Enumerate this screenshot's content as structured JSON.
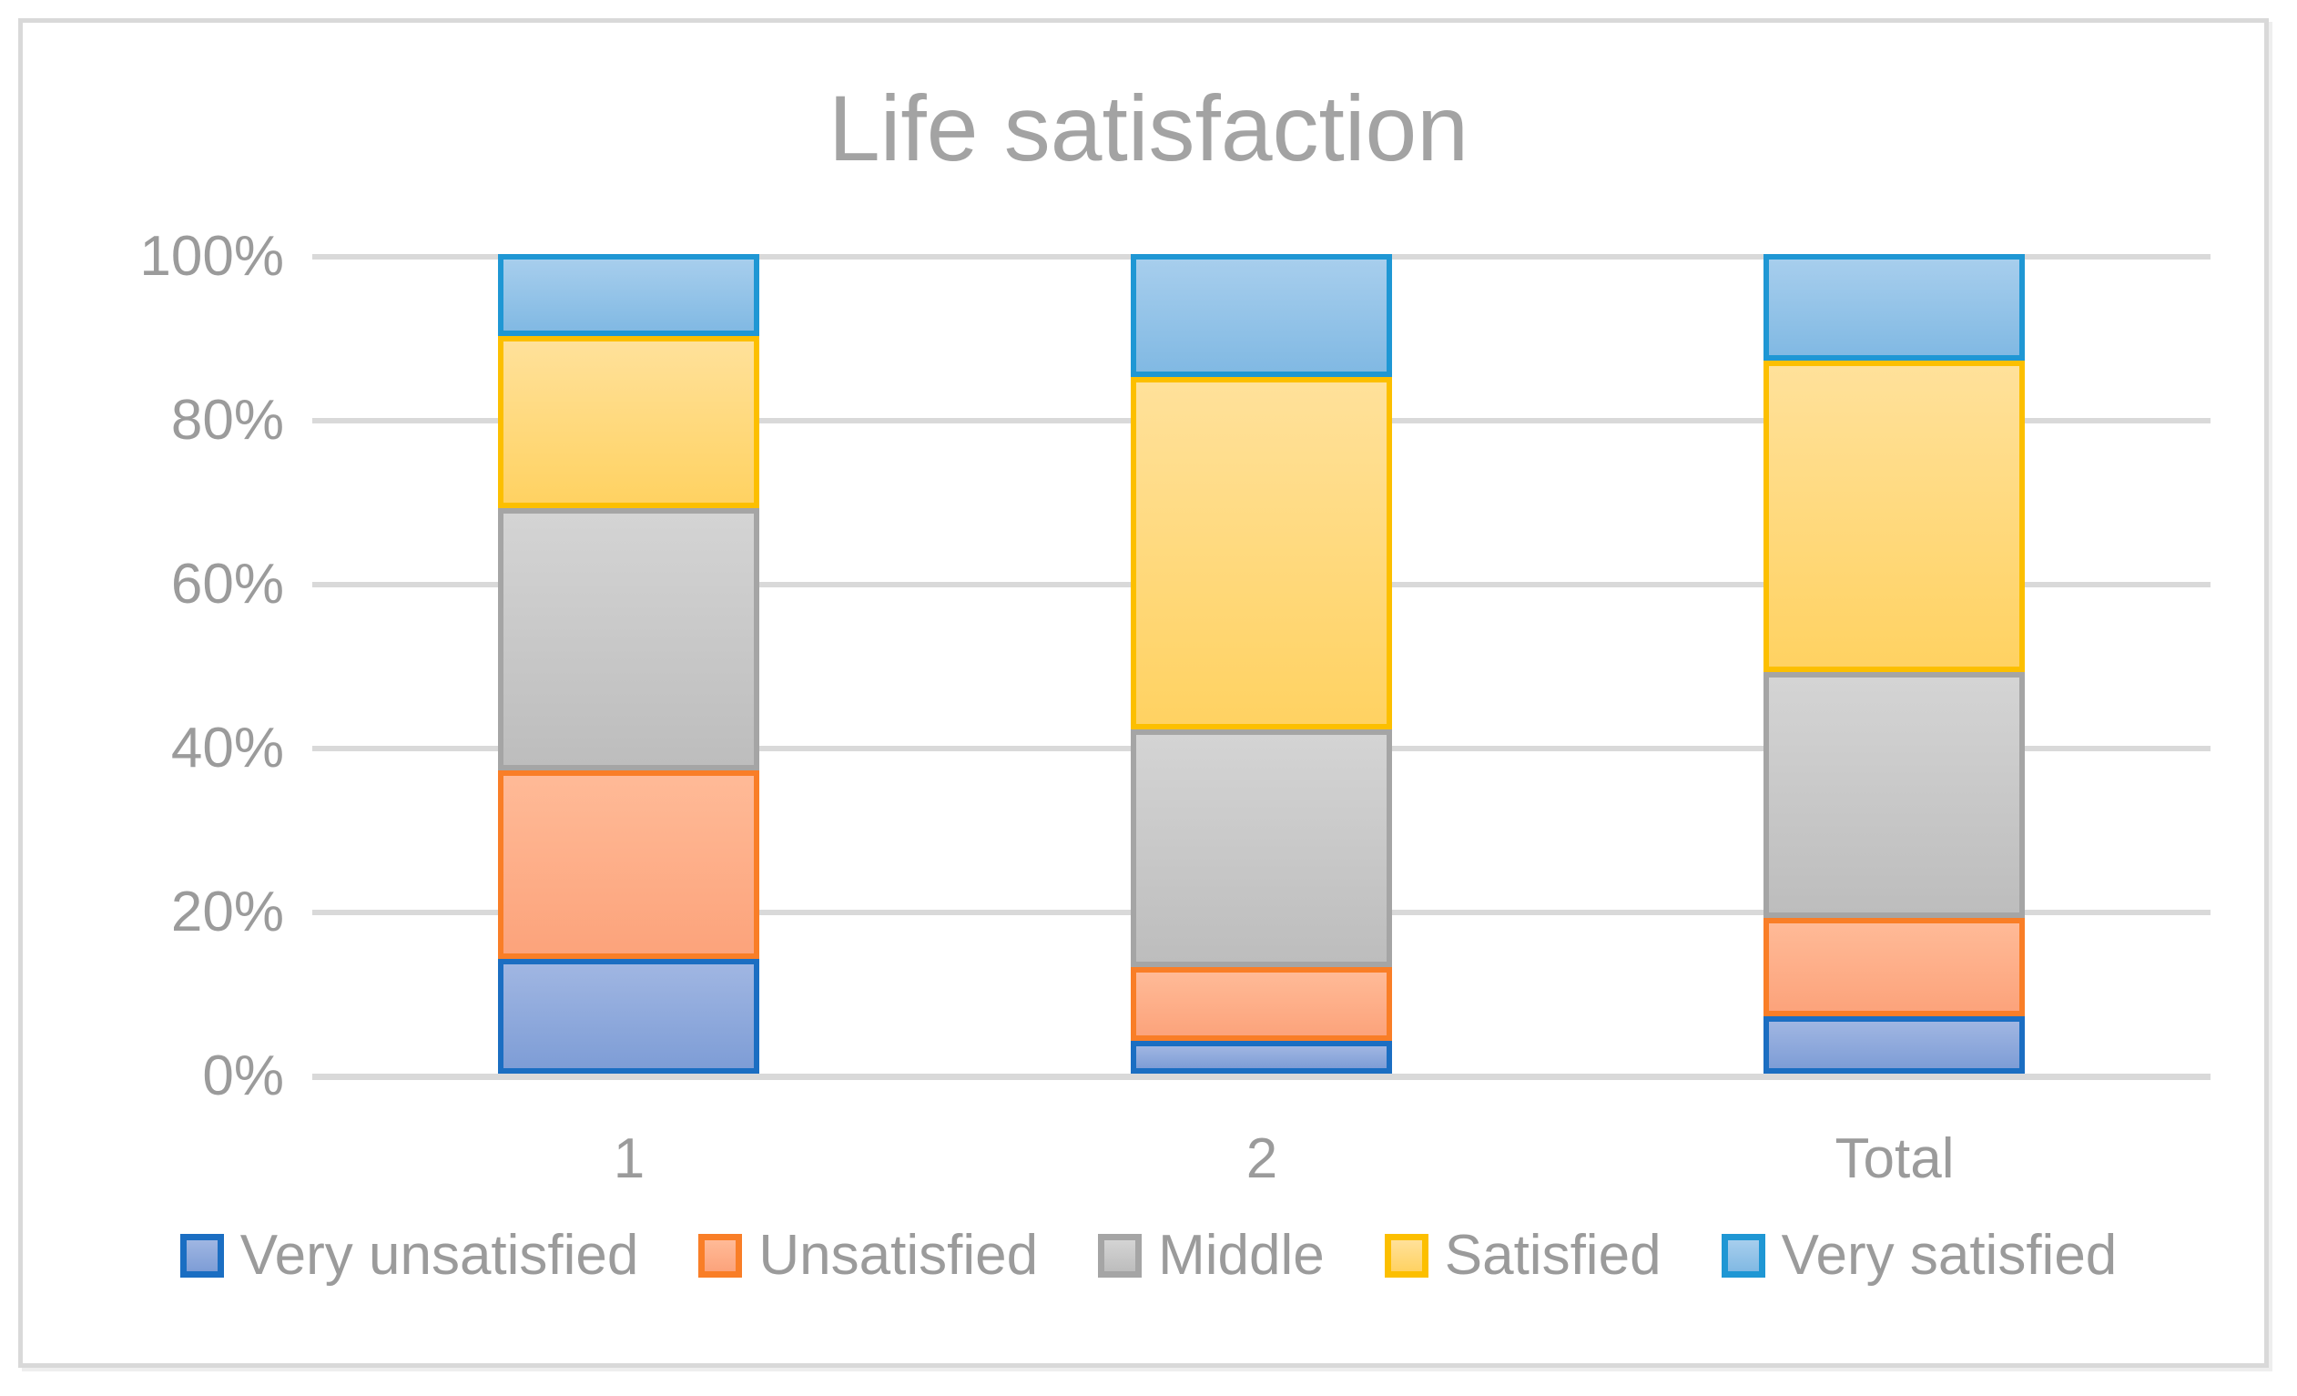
{
  "chart_data": {
    "type": "bar",
    "variant": "stacked-100-percent",
    "title": "Life satisfaction",
    "categories": [
      "1",
      "2",
      "Total"
    ],
    "series": [
      {
        "name": "Very unsatisfied",
        "values": [
          14,
          4,
          7
        ],
        "border_color": "#1b6ec2",
        "fill_top": "#a0b6e2",
        "fill_bottom": "#7e9dd6"
      },
      {
        "name": "Unsatisfied",
        "values": [
          23,
          9,
          12
        ],
        "border_color": "#f97e27",
        "fill_top": "#ffba97",
        "fill_bottom": "#fca37b"
      },
      {
        "name": "Middle",
        "values": [
          32,
          29,
          30
        ],
        "border_color": "#a5a5a5",
        "fill_top": "#d4d4d4",
        "fill_bottom": "#bdbdbd"
      },
      {
        "name": "Satisfied",
        "values": [
          21,
          43,
          38
        ],
        "border_color": "#fcbf00",
        "fill_top": "#ffe19a",
        "fill_bottom": "#ffd262"
      },
      {
        "name": "Very satisfied",
        "values": [
          10,
          15,
          13
        ],
        "border_color": "#1f97d4",
        "fill_top": "#a7ceed",
        "fill_bottom": "#81b9e3"
      }
    ],
    "y_axis": {
      "tick_labels": [
        "0%",
        "20%",
        "40%",
        "60%",
        "80%",
        "100%"
      ],
      "tick_values": [
        0,
        20,
        40,
        60,
        80,
        100
      ],
      "min": 0,
      "max": 100
    },
    "grid": "horizontal",
    "legend_position": "bottom",
    "colors": {
      "gridline": "#d9d9d9",
      "frame_border": "#d9d9d9",
      "title_text": "#a3a3a3",
      "axis_text": "#9b9b9b",
      "legend_text": "#9b9b9b",
      "background": "#ffffff"
    }
  }
}
